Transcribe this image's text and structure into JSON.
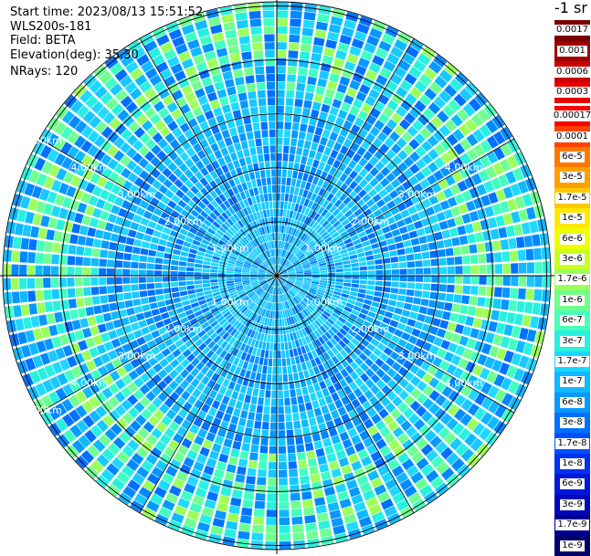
{
  "info": {
    "start_time": "Start time: 2023/08/13 15:51:52",
    "instrument": "WLS200s-181",
    "field": "Field: BETA",
    "elevation": "Elevation(deg): 35.30",
    "nrays": "NRays: 120"
  },
  "colorbar": {
    "unit": "-1 sr",
    "upper_labels": [
      "0.0017",
      "0.001",
      "0.0006",
      "0.0003"
    ],
    "lower_labels": [
      "0.00017",
      "0.0001",
      "6e-5",
      "3e-5",
      "1.7e-5",
      "1e-5",
      "6e-6",
      "3e-6",
      "1.7e-6",
      "1e-6",
      "6e-7",
      "3e-7",
      "1.7e-7",
      "1e-7",
      "6e-8",
      "3e-8",
      "1.7e-8",
      "1e-8",
      "6e-9",
      "3e-9",
      "1.7e-9",
      "1e-9"
    ],
    "upper_colors": [
      "#7a0000",
      "#a00000",
      "#c80000",
      "#e80000"
    ],
    "lower_colors": [
      "#ff0000",
      "#ff4000",
      "#ff7800",
      "#ffa000",
      "#ffc800",
      "#ffe800",
      "#f0ff00",
      "#c8ff20",
      "#9cff5a",
      "#70ff8a",
      "#48ffb8",
      "#28f0e0",
      "#18d8ff",
      "#10b8ff",
      "#0898ff",
      "#0070ff",
      "#0050ff",
      "#0030f0",
      "#0018d8",
      "#0008b8",
      "#000090",
      "#000068"
    ]
  },
  "ring_labels": [
    "1.00km",
    "2.00km",
    "3.00km",
    "4.00km",
    "5.00km"
  ],
  "chart_data": {
    "type": "heatmap",
    "projection": "polar PPI",
    "field": "BETA",
    "elevation_deg": 35.3,
    "nrays": 120,
    "range_rings_km": [
      1,
      2,
      3,
      4,
      5
    ],
    "max_range_km": 5,
    "dominant_values": [
      "6e-8",
      "3e-8",
      "1.7e-8",
      "1.7e-7",
      "3e-7"
    ],
    "grid": true
  }
}
